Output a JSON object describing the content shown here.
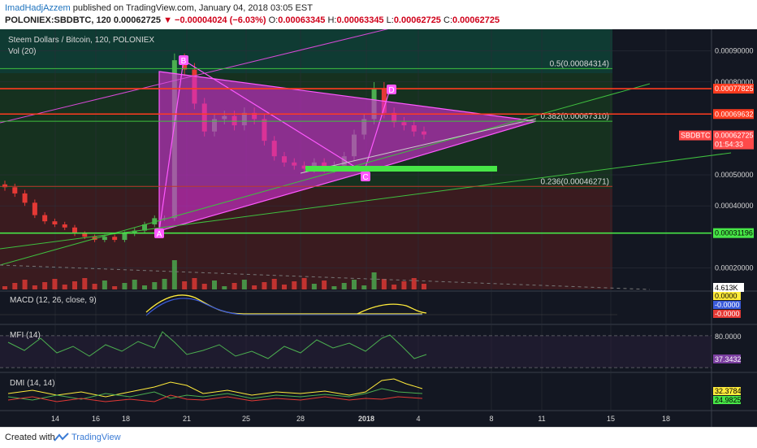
{
  "header": {
    "author": "ImadHadjAzzem",
    "published_text": "published on TradingView.com, January 04, 2018 03:05 EST",
    "symbol": "POLONIEX:SBDBTC, 120",
    "last": "0.00062725",
    "change": "−0.00004024 (−6.03%)",
    "o_label": "O:",
    "o_value": "0.00063345",
    "h_label": "H:",
    "h_value": "0.00063345",
    "l_label": "L:",
    "l_value": "0.00062725",
    "c_label": "C:",
    "c_value": "0.00062725"
  },
  "legend": {
    "title": "Steem Dollars / Bitcoin, 120, POLONIEX",
    "vol": "Vol (20)"
  },
  "panes": {
    "macd": "MACD (12, 26, close, 9)",
    "mfi": "MFI (14)",
    "dmi": "DMI (14, 14)"
  },
  "footer": {
    "created": "Created with",
    "brand": "TradingView"
  },
  "colors": {
    "background": "#131722",
    "pink_triangle": "#e040e0",
    "fib_green": "#3fbf3f",
    "red_line": "#ff3b1f",
    "green_box": "#47e647",
    "price_tag": "#ff4a4a",
    "candle_up": "#4caf50",
    "candle_down": "#e53935"
  },
  "chart_data": {
    "type": "candlestick",
    "title": "Steem Dollars / Bitcoin, 120, POLONIEX",
    "x_ticks": [
      "14",
      "16",
      "18",
      "21",
      "25",
      "28",
      "2018",
      "4",
      "8",
      "11",
      "15",
      "18"
    ],
    "y_ticks": [
      "0.00090000",
      "0.00080000",
      "0.00050000",
      "0.00040000",
      "0.00020000"
    ],
    "ylim": [
      0.00013,
      0.00097
    ],
    "price_tags": [
      {
        "label": "0.00077825",
        "color": "#ff3b1f",
        "value": 0.00077825
      },
      {
        "label": "0.00069632",
        "color": "#ff3b1f",
        "value": 0.00069632
      },
      {
        "label": "SBDBTC",
        "color": "#ff4a4a",
        "value": 0.00062725
      },
      {
        "label": "0.00062725",
        "color": "#ff4a4a",
        "value": 0.00062725
      },
      {
        "label": "01:54:33",
        "color": "#ff4a4a",
        "value": 0.000605
      },
      {
        "label": "0.00031196",
        "color": "#47e647",
        "value": 0.00031196
      }
    ],
    "fib_levels": [
      {
        "label": "0.5(0.00084314)",
        "value": 0.00084314
      },
      {
        "label": "0.382(0.00067310)",
        "value": 0.0006731
      },
      {
        "label": "0.236(0.00046271)",
        "value": 0.00046271
      }
    ],
    "pattern_points": [
      "A",
      "B",
      "C",
      "D"
    ],
    "close_series": [
      0.00046,
      0.00044,
      0.00041,
      0.00037,
      0.00035,
      0.00034,
      0.00033,
      0.00031,
      0.0003,
      0.00029,
      0.0003,
      0.00029,
      0.00031,
      0.00032,
      0.00034,
      0.00036,
      0.00036,
      0.00087,
      0.00084,
      0.00073,
      0.00064,
      0.00068,
      0.00069,
      0.00066,
      0.0007,
      0.00068,
      0.00061,
      0.00056,
      0.00054,
      0.00053,
      0.00052,
      0.00054,
      0.00052,
      0.00053,
      0.00056,
      0.00063,
      0.00068,
      0.00078,
      0.0007,
      0.00067,
      0.00066,
      0.00064,
      0.00063
    ],
    "volume_label": "4.613K",
    "macd_values": [
      "0.0000",
      "-0.0000",
      "-0.0000"
    ],
    "mfi_values": [
      "80.0000",
      "37.3432"
    ],
    "dmi_values": [
      "32.3784",
      "24.9825"
    ]
  }
}
